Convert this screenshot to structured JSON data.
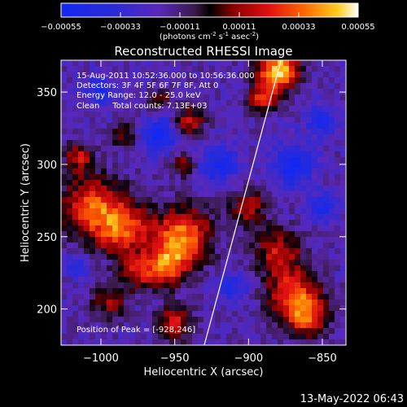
{
  "colorbar": {
    "ticks": [
      "-0.00055",
      "-0.00033",
      "-0.00011",
      "0.00011",
      "0.00033",
      "0.00055"
    ],
    "range": [
      -0.00055,
      0.00055
    ],
    "units": "(photons cm",
    "units_sup1": "-2",
    "units_mid": " s",
    "units_sup2": "-1",
    "units_mid2": " asec",
    "units_sup3": "-2",
    "units_end": ")"
  },
  "chart_data": {
    "type": "heatmap",
    "title": "Reconstructed RHESSI Image",
    "xlabel": "Heliocentric X (arcsec)",
    "ylabel": "Heliocentric Y (arcsec)",
    "xlim": [
      -1027,
      -834
    ],
    "ylim": [
      175,
      372
    ],
    "xticks": [
      -1000,
      -950,
      -900,
      -850
    ],
    "yticks": [
      200,
      250,
      300,
      350
    ],
    "colormap": "blue-purple-red-yellow-white",
    "limb_line": [
      [
        -930,
        175
      ],
      [
        -878,
        372
      ]
    ],
    "peak_xy": [
      -928,
      246
    ]
  },
  "annotations": {
    "time_range": "15-Aug-2011 10:52:36.000 to 10:56:36.000",
    "detectors": "Detectors: 3F 4F 5F 6F 7F 8F, Att 0",
    "energy": "Energy Range: 12.0 - 25.0 keV",
    "clean": "Clean     Total counts: 7.13E+03",
    "peak": "Position of Peak = [-928,246]"
  },
  "footer": {
    "timestamp": "13-May-2022 06:43"
  }
}
